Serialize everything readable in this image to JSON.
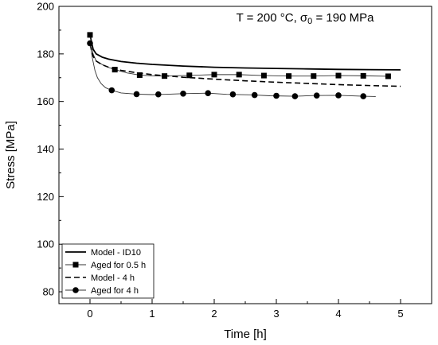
{
  "chart_data": {
    "type": "line",
    "title": "",
    "annotation": {
      "prefix": "T = 200 °C, σ",
      "sub": "0",
      "suffix": " = 190 MPa"
    },
    "xlabel": "Time [h]",
    "ylabel": "Stress [MPa]",
    "xlim": [
      -0.5,
      5.5
    ],
    "ylim": [
      75,
      200
    ],
    "xticks": [
      0,
      1,
      2,
      3,
      4,
      5
    ],
    "yticks": [
      80,
      100,
      120,
      140,
      160,
      180,
      200
    ],
    "grid": false,
    "legend_position": "bottom-left",
    "series": [
      {
        "name": "Model - ID10",
        "style": "solid",
        "marker": "none",
        "x": [
          0,
          0.05,
          0.1,
          0.2,
          0.3,
          0.5,
          0.75,
          1,
          1.5,
          2,
          2.5,
          3,
          3.5,
          4,
          4.5,
          5
        ],
        "y": [
          188,
          182,
          180,
          178.6,
          177.8,
          176.8,
          176.1,
          175.6,
          174.9,
          174.4,
          174.1,
          173.9,
          173.7,
          173.5,
          173.4,
          173.3
        ]
      },
      {
        "name": "Aged for 0.5 h",
        "style": "solid-thin",
        "marker": "square",
        "x": [
          0,
          0.05,
          0.1,
          0.2,
          0.3,
          0.4,
          0.6,
          0.8,
          1.0,
          1.2,
          1.6,
          2.0,
          2.4,
          2.8,
          3.2,
          3.6,
          4.0,
          4.4,
          4.8
        ],
        "y": [
          188,
          180,
          177,
          175.5,
          174.3,
          173.4,
          172,
          171.1,
          170.8,
          170.7,
          171,
          171.3,
          171.3,
          170.9,
          170.7,
          170.7,
          170.9,
          170.8,
          170.6
        ],
        "markers_x": [
          0,
          0.4,
          0.8,
          1.2,
          1.6,
          2.0,
          2.4,
          2.8,
          3.2,
          3.6,
          4.0,
          4.4,
          4.8
        ],
        "markers_y": [
          188,
          173.4,
          171.1,
          170.7,
          171,
          171.3,
          171.3,
          170.9,
          170.7,
          170.7,
          170.9,
          170.8,
          170.6
        ]
      },
      {
        "name": "Model - 4 h",
        "style": "dashed",
        "marker": "none",
        "x": [
          0,
          0.05,
          0.1,
          0.2,
          0.3,
          0.5,
          0.75,
          1,
          1.5,
          2,
          2.5,
          3,
          3.5,
          4,
          4.5,
          5
        ],
        "y": [
          184,
          179,
          177,
          175.4,
          174.4,
          173.1,
          172.1,
          171.3,
          170.2,
          169.4,
          168.7,
          168.1,
          167.6,
          167.1,
          166.7,
          166.4
        ]
      },
      {
        "name": "Aged for 4 h",
        "style": "solid-thin",
        "marker": "circle",
        "x": [
          0,
          0.04,
          0.08,
          0.12,
          0.18,
          0.25,
          0.35,
          0.5,
          0.75,
          1.0,
          1.2,
          1.5,
          1.9,
          2.2,
          2.6,
          2.9,
          3.3,
          3.6,
          4.0,
          4.4,
          4.6
        ],
        "y": [
          184.5,
          178,
          173,
          170,
          167.5,
          165.8,
          164.7,
          163.6,
          163.1,
          162.9,
          163,
          163.3,
          163.5,
          163,
          162.8,
          162.4,
          162.2,
          162.5,
          162.6,
          162.2,
          162.1
        ],
        "markers_x": [
          0,
          0.35,
          0.75,
          1.1,
          1.5,
          1.9,
          2.3,
          2.65,
          3.0,
          3.3,
          3.65,
          4.0,
          4.4
        ],
        "markers_y": [
          184.5,
          164.7,
          163.1,
          163,
          163.3,
          163.5,
          163,
          162.7,
          162.4,
          162.2,
          162.5,
          162.6,
          162.2
        ]
      }
    ]
  }
}
